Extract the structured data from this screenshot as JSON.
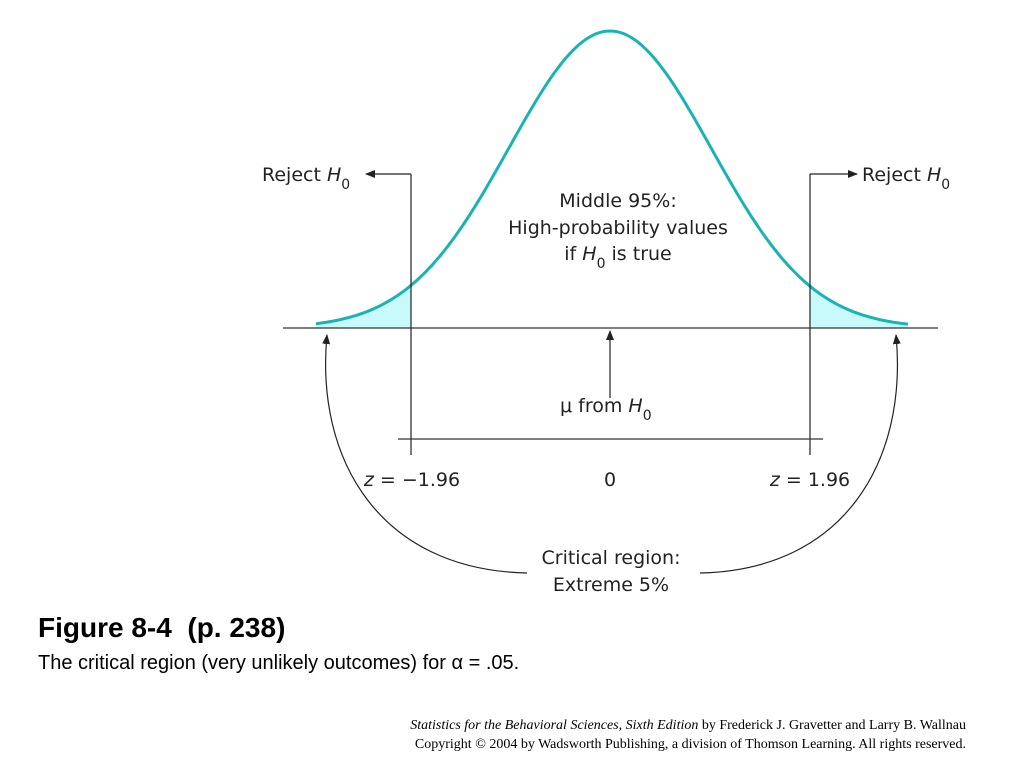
{
  "diagram": {
    "reject_label": "Reject",
    "h0_symbol": "H",
    "h0_subscript": "0",
    "middle_line1": "Middle 95%:",
    "middle_line2": "High-probability values",
    "middle_line3_pre": "if ",
    "middle_line3_post": " is true",
    "mu_symbol": "μ",
    "mu_from": " from ",
    "z_left_var": "z",
    "z_left_rest": " = −1.96",
    "zero_label": "0",
    "z_right_var": "z",
    "z_right_rest": " = 1.96",
    "critical_line1": "Critical region:",
    "critical_line2": "Extreme 5%",
    "curve_color": "#1ab3b3",
    "tail_fill_color": "#c8fafc"
  },
  "caption": {
    "title": "Figure 8-4  (p. 238)",
    "subtitle_pre": "The critical region (very unlikely outcomes) for ",
    "alpha_symbol": "α",
    "subtitle_post": " = .05."
  },
  "credit": {
    "book_title": "Statistics for the Behavioral Sciences, Sixth Edition",
    "authors": " by Frederick J. Gravetter and Larry B. Wallnau",
    "copyright": "Copyright © 2004 by Wadsworth Publishing, a division of Thomson Learning.  All rights reserved."
  }
}
